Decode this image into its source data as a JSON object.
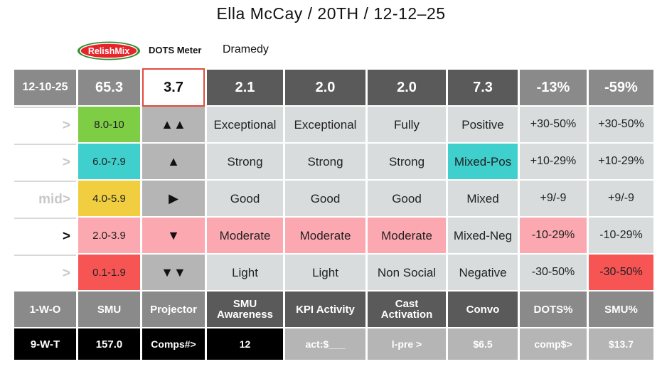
{
  "header": {
    "title": "Ella McCay / 20TH  / 12-12–25"
  },
  "brand": {
    "logo_text": "RelishMix",
    "meter_label": "DOTS Meter",
    "genre": "Dramedy"
  },
  "colors": {
    "green": "#7dce45",
    "teal": "#3fcfcc",
    "yellow": "#f0ce3f",
    "pink": "#fca8b0",
    "red": "#f75554",
    "light": "#d9dcdc",
    "mid_gray": "#b5b5b5",
    "gray": "#8a8a8a",
    "dark": "#5a5a5a",
    "black": "#000000"
  },
  "top_row": {
    "date": "12-10-25",
    "smu": "65.3",
    "projector": "3.7",
    "awareness": "2.1",
    "kpi": "2.0",
    "cast": "2.0",
    "convo": "7.3",
    "dots_pct": "-13%",
    "smu_pct": "-59%"
  },
  "rows": [
    {
      "marker": ">",
      "range": "8.0-10",
      "symbol": "▲▲",
      "awareness": "Exceptional",
      "kpi": "Exceptional",
      "cast": "Fully",
      "convo": "Positive",
      "dots_pct": "+30-50%",
      "smu_pct": "+30-50%"
    },
    {
      "marker": ">",
      "range": "6.0-7.9",
      "symbol": "▲",
      "awareness": "Strong",
      "kpi": "Strong",
      "cast": "Strong",
      "convo": "Mixed-Pos",
      "dots_pct": "+10-29%",
      "smu_pct": "+10-29%"
    },
    {
      "marker": "mid>",
      "range": "4.0-5.9",
      "symbol": "▶",
      "awareness": "Good",
      "kpi": "Good",
      "cast": "Good",
      "convo": "Mixed",
      "dots_pct": "+9/-9",
      "smu_pct": "+9/-9"
    },
    {
      "marker": ">",
      "range": "2.0-3.9",
      "symbol": "▼",
      "awareness": "Moderate",
      "kpi": "Moderate",
      "cast": "Moderate",
      "convo": "Mixed-Neg",
      "dots_pct": "-10-29%",
      "smu_pct": "-10-29%"
    },
    {
      "marker": ">",
      "range": "0.1-1.9",
      "symbol": "▼▼",
      "awareness": "Light",
      "kpi": "Light",
      "cast": "Non Social",
      "convo": "Negative",
      "dots_pct": "-30-50%",
      "smu_pct": "-30-50%"
    }
  ],
  "labels_row": {
    "col0": "1-W-O",
    "smu": "SMU",
    "projector": "Projector",
    "awareness_1": "SMU",
    "awareness_2": "Awareness",
    "kpi": "KPI Activity",
    "cast_1": "Cast",
    "cast_2": "Activation",
    "convo": "Convo",
    "dots_pct": "DOTS%",
    "smu_pct": "SMU%"
  },
  "bottom_row": {
    "col0": "9-W-T",
    "smu": "157.0",
    "projector": "Comps#>",
    "awareness": "12",
    "kpi": "act:$___",
    "cast": "l-pre >",
    "convo": "$6.5",
    "dots_pct": "comp$>",
    "smu_pct": "$13.7"
  }
}
